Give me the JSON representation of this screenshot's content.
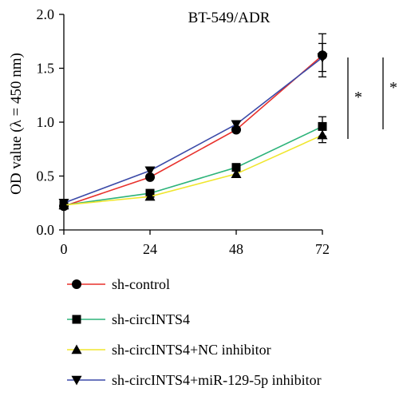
{
  "chart_data": {
    "type": "line",
    "title": "BT-549/ADR",
    "xlabel": "",
    "ylabel": "OD value (λ = 450 nm)",
    "x": [
      0,
      24,
      48,
      72
    ],
    "x_tick_labels": [
      "0",
      "24",
      "48",
      "72"
    ],
    "y_tick_labels": [
      "0.0",
      "0.5",
      "1.0",
      "1.5",
      "2.0"
    ],
    "ylim": [
      0,
      2.0
    ],
    "grid": false,
    "legend_position": "bottom",
    "series": [
      {
        "name": "sh-control",
        "values": [
          0.22,
          0.49,
          0.93,
          1.62
        ],
        "err": [
          0,
          0,
          0,
          0.2
        ],
        "color": "#e8312c",
        "marker": "circle"
      },
      {
        "name": "sh-circINTS4",
        "values": [
          0.23,
          0.34,
          0.58,
          0.96
        ],
        "err": [
          0,
          0,
          0,
          0.09
        ],
        "color": "#2db37a",
        "marker": "square"
      },
      {
        "name": "sh-circINTS4+NC inhibitor",
        "values": [
          0.23,
          0.31,
          0.52,
          0.88
        ],
        "err": [
          0,
          0,
          0,
          0.07
        ],
        "color": "#f0e62e",
        "marker": "triangle-up"
      },
      {
        "name": "sh-circINTS4+miR-129-5p inhibitor",
        "values": [
          0.25,
          0.55,
          0.98,
          1.6
        ],
        "err": [
          0,
          0,
          0,
          0.13
        ],
        "color": "#3b4aa8",
        "marker": "triangle-down"
      }
    ],
    "annotations": [
      {
        "text": "*",
        "from": 72,
        "to": 72
      },
      {
        "text": "*",
        "from": 72,
        "to": 72
      }
    ]
  }
}
